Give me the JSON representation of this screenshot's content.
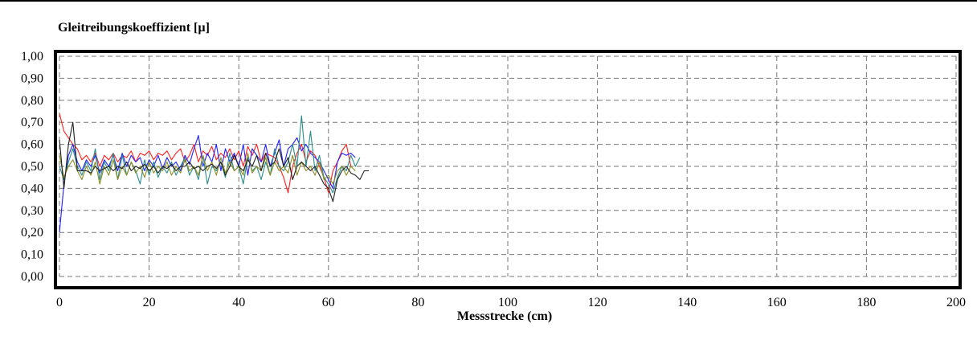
{
  "chart_data": {
    "type": "line",
    "title": "Gleitreibungskoeffizient [µ]",
    "xlabel": "Messstrecke (cm)",
    "ylabel": "",
    "xlim": [
      0,
      200
    ],
    "ylim": [
      0,
      1.0
    ],
    "x_ticks": [
      "0",
      "20",
      "40",
      "60",
      "80",
      "100",
      "120",
      "140",
      "160",
      "180",
      "200"
    ],
    "y_ticks": [
      "0,00",
      "0,10",
      "0,20",
      "0,30",
      "0,40",
      "0,50",
      "0,60",
      "0,70",
      "0,80",
      "0,90",
      "1,00"
    ],
    "grid": true,
    "series": [
      {
        "color": "#ff2020",
        "x": [
          0,
          1,
          2,
          3,
          4,
          5,
          6,
          7,
          8,
          9,
          10,
          11,
          12,
          13,
          14,
          15,
          16,
          17,
          18,
          19,
          20,
          21,
          22,
          23,
          24,
          25,
          26,
          27,
          28,
          29,
          30,
          31,
          32,
          33,
          34,
          35,
          36,
          37,
          38,
          39,
          40,
          41,
          42,
          43,
          44,
          45,
          46,
          47,
          48,
          49,
          50,
          51,
          52,
          53,
          54,
          55,
          56,
          57,
          58,
          59,
          60,
          61,
          62,
          63,
          64,
          65
        ],
        "y": [
          0.74,
          0.66,
          0.63,
          0.6,
          0.58,
          0.53,
          0.55,
          0.52,
          0.56,
          0.5,
          0.55,
          0.53,
          0.56,
          0.52,
          0.55,
          0.54,
          0.57,
          0.52,
          0.56,
          0.55,
          0.57,
          0.53,
          0.56,
          0.55,
          0.57,
          0.53,
          0.56,
          0.58,
          0.52,
          0.55,
          0.6,
          0.52,
          0.57,
          0.55,
          0.59,
          0.53,
          0.56,
          0.54,
          0.58,
          0.53,
          0.57,
          0.5,
          0.59,
          0.55,
          0.6,
          0.52,
          0.56,
          0.55,
          0.54,
          0.5,
          0.45,
          0.38,
          0.5,
          0.56,
          0.6,
          0.52,
          0.57,
          0.55,
          0.5,
          0.45,
          0.38,
          0.48,
          0.52,
          0.57,
          0.6,
          0.5
        ]
      },
      {
        "color": "#2020ff",
        "x": [
          0,
          1,
          2,
          3,
          4,
          5,
          6,
          7,
          8,
          9,
          10,
          11,
          12,
          13,
          14,
          15,
          16,
          17,
          18,
          19,
          20,
          21,
          22,
          23,
          24,
          25,
          26,
          27,
          28,
          29,
          30,
          31,
          32,
          33,
          34,
          35,
          36,
          37,
          38,
          39,
          40,
          41,
          42,
          43,
          44,
          45,
          46,
          47,
          48,
          49,
          50,
          51,
          52,
          53,
          54,
          55,
          56,
          57,
          58,
          59,
          60,
          61,
          62,
          63,
          64,
          65,
          66
        ],
        "y": [
          0.2,
          0.42,
          0.55,
          0.6,
          0.52,
          0.48,
          0.53,
          0.5,
          0.55,
          0.47,
          0.53,
          0.5,
          0.55,
          0.48,
          0.56,
          0.5,
          0.55,
          0.52,
          0.54,
          0.48,
          0.53,
          0.5,
          0.55,
          0.49,
          0.54,
          0.5,
          0.52,
          0.48,
          0.55,
          0.51,
          0.58,
          0.64,
          0.5,
          0.56,
          0.52,
          0.6,
          0.48,
          0.58,
          0.52,
          0.56,
          0.5,
          0.6,
          0.46,
          0.58,
          0.55,
          0.52,
          0.6,
          0.5,
          0.56,
          0.62,
          0.5,
          0.58,
          0.6,
          0.63,
          0.57,
          0.6,
          0.56,
          0.54,
          0.52,
          0.48,
          0.44,
          0.4,
          0.52,
          0.56,
          0.55,
          0.56,
          0.54
        ]
      },
      {
        "color": "#2a8a8a",
        "x": [
          0,
          1,
          2,
          3,
          4,
          5,
          6,
          7,
          8,
          9,
          10,
          11,
          12,
          13,
          14,
          15,
          16,
          17,
          18,
          19,
          20,
          21,
          22,
          23,
          24,
          25,
          26,
          27,
          28,
          29,
          30,
          31,
          32,
          33,
          34,
          35,
          36,
          37,
          38,
          39,
          40,
          41,
          42,
          43,
          44,
          45,
          46,
          47,
          48,
          49,
          50,
          51,
          52,
          53,
          54,
          55,
          56,
          57,
          58,
          59,
          60,
          61,
          62,
          63,
          64,
          65,
          66,
          67
        ],
        "y": [
          0.5,
          0.44,
          0.52,
          0.58,
          0.5,
          0.46,
          0.52,
          0.48,
          0.58,
          0.44,
          0.52,
          0.48,
          0.56,
          0.44,
          0.55,
          0.46,
          0.52,
          0.48,
          0.42,
          0.53,
          0.46,
          0.52,
          0.45,
          0.5,
          0.47,
          0.52,
          0.46,
          0.5,
          0.54,
          0.46,
          0.5,
          0.44,
          0.55,
          0.42,
          0.5,
          0.48,
          0.52,
          0.45,
          0.56,
          0.48,
          0.5,
          0.42,
          0.54,
          0.48,
          0.5,
          0.44,
          0.52,
          0.46,
          0.58,
          0.5,
          0.48,
          0.52,
          0.6,
          0.5,
          0.73,
          0.5,
          0.66,
          0.48,
          0.55,
          0.45,
          0.42,
          0.38,
          0.45,
          0.5,
          0.48,
          0.55,
          0.5,
          0.54
        ]
      },
      {
        "color": "#8a8a20",
        "x": [
          0,
          1,
          2,
          3,
          4,
          5,
          6,
          7,
          8,
          9,
          10,
          11,
          12,
          13,
          14,
          15,
          16,
          17,
          18,
          19,
          20,
          21,
          22,
          23,
          24,
          25,
          26,
          27,
          28,
          29,
          30,
          31,
          32,
          33,
          34,
          35,
          36,
          37,
          38,
          39,
          40,
          41,
          42,
          43,
          44,
          45,
          46,
          47,
          48,
          49,
          50,
          51,
          52,
          53,
          54,
          55,
          56,
          57,
          58,
          59,
          60,
          61,
          62,
          63,
          64,
          65,
          66
        ],
        "y": [
          0.55,
          0.45,
          0.5,
          0.53,
          0.48,
          0.44,
          0.5,
          0.46,
          0.52,
          0.42,
          0.5,
          0.46,
          0.53,
          0.44,
          0.5,
          0.46,
          0.52,
          0.47,
          0.5,
          0.45,
          0.52,
          0.47,
          0.5,
          0.48,
          0.52,
          0.46,
          0.5,
          0.47,
          0.53,
          0.48,
          0.5,
          0.46,
          0.55,
          0.48,
          0.52,
          0.46,
          0.54,
          0.47,
          0.52,
          0.48,
          0.5,
          0.46,
          0.56,
          0.47,
          0.5,
          0.48,
          0.54,
          0.46,
          0.52,
          0.48,
          0.5,
          0.47,
          0.55,
          0.46,
          0.52,
          0.48,
          0.5,
          0.46,
          0.52,
          0.44,
          0.46,
          0.42,
          0.48,
          0.5,
          0.46,
          0.5,
          0.48
        ]
      },
      {
        "color": "#202020",
        "x": [
          0,
          1,
          2,
          3,
          4,
          5,
          6,
          7,
          8,
          9,
          10,
          11,
          12,
          13,
          14,
          15,
          16,
          17,
          18,
          19,
          20,
          21,
          22,
          23,
          24,
          25,
          26,
          27,
          28,
          29,
          30,
          31,
          32,
          33,
          34,
          35,
          36,
          37,
          38,
          39,
          40,
          41,
          42,
          43,
          44,
          45,
          46,
          47,
          48,
          49,
          50,
          51,
          52,
          53,
          54,
          55,
          56,
          57,
          58,
          59,
          60,
          61,
          62,
          63,
          64,
          65,
          66,
          67,
          68,
          69
        ],
        "y": [
          0.62,
          0.4,
          0.6,
          0.7,
          0.48,
          0.48,
          0.48,
          0.47,
          0.5,
          0.48,
          0.49,
          0.5,
          0.48,
          0.5,
          0.49,
          0.52,
          0.48,
          0.5,
          0.49,
          0.51,
          0.48,
          0.5,
          0.47,
          0.5,
          0.49,
          0.51,
          0.48,
          0.5,
          0.5,
          0.52,
          0.49,
          0.5,
          0.48,
          0.5,
          0.51,
          0.49,
          0.52,
          0.46,
          0.5,
          0.55,
          0.5,
          0.48,
          0.53,
          0.5,
          0.55,
          0.48,
          0.56,
          0.5,
          0.52,
          0.58,
          0.5,
          0.54,
          0.44,
          0.5,
          0.52,
          0.5,
          0.48,
          0.5,
          0.46,
          0.42,
          0.4,
          0.34,
          0.44,
          0.48,
          0.5,
          0.47,
          0.46,
          0.44,
          0.48,
          0.48
        ]
      }
    ]
  }
}
